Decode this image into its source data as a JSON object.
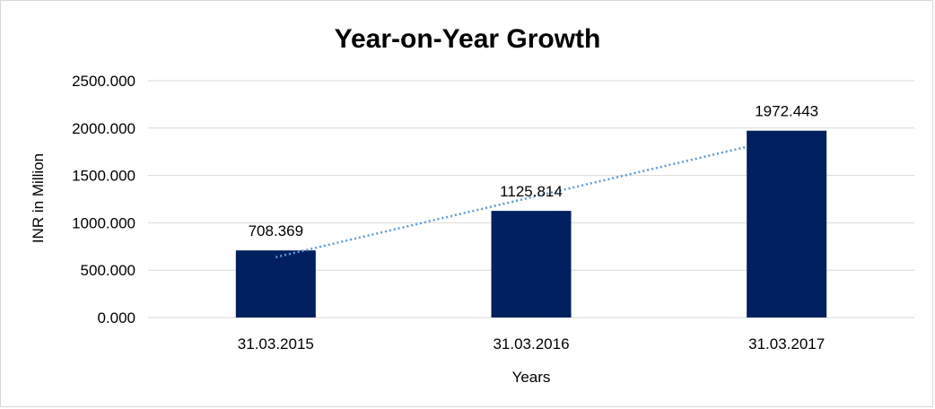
{
  "chart_data": {
    "type": "bar",
    "title": "Year-on-Year Growth",
    "xlabel": "Years",
    "ylabel": "INR in Million",
    "categories": [
      "31.03.2015",
      "31.03.2016",
      "31.03.2017"
    ],
    "values": [
      708.369,
      1125.814,
      1972.443
    ],
    "data_labels": [
      "708.369",
      "1125.814",
      "1972.443"
    ],
    "ylim": [
      0,
      2500
    ],
    "yticks": [
      0,
      500,
      1000,
      1500,
      2000,
      2500
    ],
    "ytick_labels": [
      "0.000",
      "500.000",
      "1000.000",
      "1500.000",
      "2000.000",
      "2500.000"
    ],
    "grid": true,
    "legend": "none",
    "trendline": "linear",
    "colors": {
      "bar": "#002060",
      "trendline": "#5b9bd5",
      "grid": "#d9d9d9"
    }
  }
}
